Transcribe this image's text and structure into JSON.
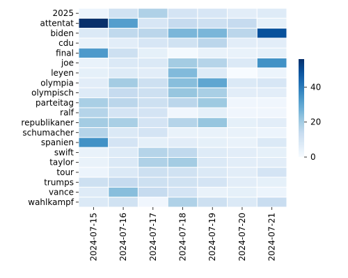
{
  "chart_data": {
    "type": "heatmap",
    "title": "",
    "xlabel": "",
    "ylabel": "",
    "x_categories": [
      "2024-07-15",
      "2024-07-16",
      "2024-07-17",
      "2024-07-18",
      "2024-07-19",
      "2024-07-20",
      "2024-07-21"
    ],
    "y_categories": [
      "2025",
      "attentat",
      "biden",
      "cdu",
      "final",
      "joe",
      "leyen",
      "olympia",
      "olympisch",
      "parteitag",
      "ralf",
      "republikaner",
      "schumacher",
      "spanien",
      "swift",
      "taylor",
      "tour",
      "trumps",
      "vance",
      "wahlkampf"
    ],
    "values": [
      [
        3,
        11,
        18,
        10,
        9,
        6,
        7
      ],
      [
        56,
        32,
        9,
        14,
        12,
        14,
        5
      ],
      [
        8,
        15,
        16,
        26,
        26,
        16,
        49
      ],
      [
        4,
        6,
        9,
        11,
        16,
        6,
        6
      ],
      [
        33,
        12,
        5,
        1,
        4,
        4,
        5
      ],
      [
        4,
        8,
        8,
        20,
        17,
        8,
        35
      ],
      [
        5,
        7,
        6,
        25,
        7,
        0,
        3
      ],
      [
        6,
        20,
        12,
        24,
        30,
        8,
        9
      ],
      [
        7,
        14,
        12,
        22,
        19,
        6,
        6
      ],
      [
        19,
        16,
        12,
        16,
        21,
        2,
        2
      ],
      [
        17,
        10,
        10,
        2,
        5,
        2,
        2
      ],
      [
        20,
        19,
        10,
        17,
        22,
        5,
        6
      ],
      [
        17,
        8,
        10,
        4,
        4,
        4,
        3
      ],
      [
        35,
        10,
        5,
        6,
        5,
        4,
        8
      ],
      [
        4,
        7,
        17,
        15,
        7,
        6,
        5
      ],
      [
        4,
        8,
        18,
        20,
        8,
        6,
        6
      ],
      [
        3,
        8,
        12,
        11,
        8,
        6,
        10
      ],
      [
        12,
        14,
        12,
        11,
        10,
        6,
        5
      ],
      [
        7,
        24,
        14,
        10,
        4,
        5,
        3
      ],
      [
        8,
        11,
        2,
        18,
        12,
        8,
        13
      ]
    ],
    "colorbar": {
      "min": 0,
      "max": 56,
      "ticks": [
        0,
        20,
        40
      ]
    },
    "colormap": "Blues",
    "colors": {
      "low": "#f7fbff",
      "high": "#08306b"
    },
    "grid": true,
    "cell_border": "#ffffff"
  }
}
